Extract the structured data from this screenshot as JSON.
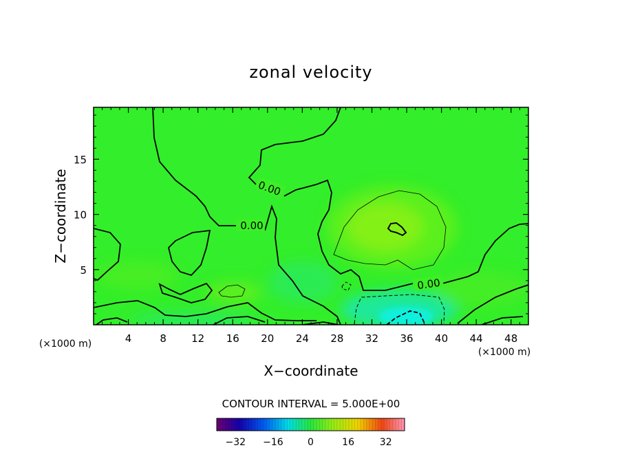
{
  "chart_data": {
    "type": "heatmap",
    "title": "zonal velocity",
    "xlabel": "X−coordinate",
    "ylabel": "Z−coordinate",
    "x_unit_left": "(×1000 m)",
    "x_unit_right": "(×1000 m)",
    "xlim": [
      0,
      50
    ],
    "ylim": [
      0,
      19.7
    ],
    "x_ticks": [
      4,
      8,
      12,
      16,
      20,
      24,
      28,
      32,
      36,
      40,
      44,
      48
    ],
    "y_ticks": [
      5,
      10,
      15
    ],
    "contour_labels": [
      "0.00",
      "0.00",
      "0.00"
    ],
    "contour_interval_text": "CONTOUR INTERVAL = 5.000E+00",
    "colorbar": {
      "min": -40,
      "max": 40,
      "ticks": [
        -32,
        -16,
        0,
        16,
        32
      ],
      "tick_labels": [
        "−32",
        "−16",
        "0",
        "16",
        "32"
      ]
    },
    "colors": {
      "field_base": "#33ee2a",
      "weak_positive": "#7ff018",
      "negative": "#17e3b0",
      "strong_negative": "#10f0e4"
    }
  }
}
